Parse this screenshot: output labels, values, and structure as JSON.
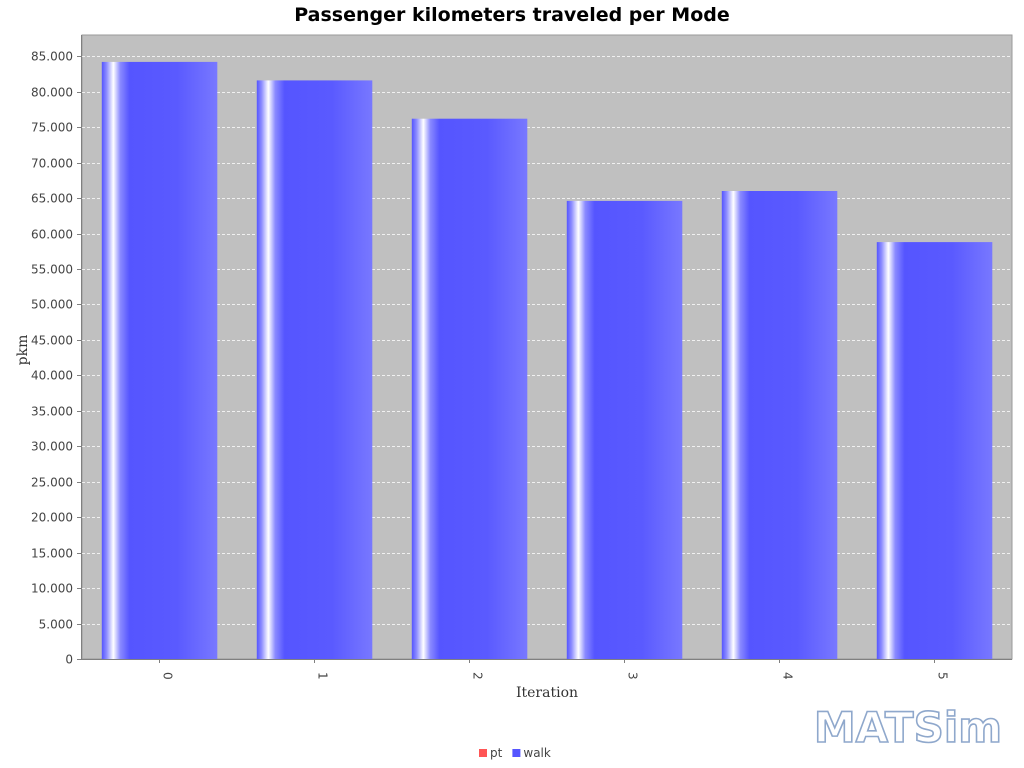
{
  "chart_data": {
    "type": "bar",
    "title": "Passenger kilometers traveled per Mode",
    "xlabel": "Iteration",
    "ylabel": "pkm",
    "categories": [
      "0",
      "1",
      "2",
      "3",
      "4",
      "5"
    ],
    "series": [
      {
        "name": "pt",
        "color": "#ff5555",
        "values": [
          0,
          0,
          0,
          0,
          0,
          0
        ]
      },
      {
        "name": "walk",
        "color": "#5555ff",
        "values": [
          84200,
          81600,
          76200,
          64600,
          66000,
          58800
        ]
      }
    ],
    "ylim": [
      0,
      88000
    ],
    "yticks": [
      0,
      5000,
      10000,
      15000,
      20000,
      25000,
      30000,
      35000,
      40000,
      45000,
      50000,
      55000,
      60000,
      65000,
      70000,
      75000,
      80000,
      85000
    ],
    "ytick_labels": [
      "0",
      "5.000",
      "10.000",
      "15.000",
      "20.000",
      "25.000",
      "30.000",
      "35.000",
      "40.000",
      "45.000",
      "50.000",
      "55.000",
      "60.000",
      "65.000",
      "70.000",
      "75.000",
      "80.000",
      "85.000"
    ],
    "grid": true,
    "legend_position": "bottom-center",
    "plot_background": "#c0c0c0"
  },
  "logo": {
    "text": "MATSim"
  }
}
